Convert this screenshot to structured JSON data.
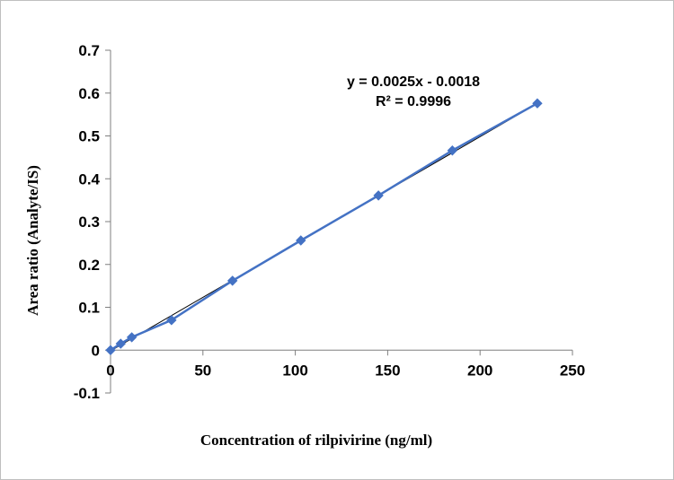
{
  "chart_data": {
    "type": "scatter",
    "xlabel": "Concentration of rilpivirine  (ng/ml)",
    "ylabel": "Area ratio (Analyte/IS)",
    "xlim": [
      0,
      250
    ],
    "ylim": [
      -0.1,
      0.7
    ],
    "x_ticks": [
      "0",
      "50",
      "100",
      "150",
      "200",
      "250"
    ],
    "x_tick_values": [
      0,
      50,
      100,
      150,
      200,
      250
    ],
    "y_ticks": [
      "-0.1",
      "0",
      "0.1",
      "0.2",
      "0.3",
      "0.4",
      "0.5",
      "0.6",
      "0.7"
    ],
    "y_tick_values": [
      -0.1,
      0,
      0.1,
      0.2,
      0.3,
      0.4,
      0.5,
      0.6,
      0.7
    ],
    "grid": false,
    "legend": false,
    "series": [
      {
        "x": [
          0,
          5.5,
          11.5,
          33,
          66,
          103,
          145,
          185,
          231
        ],
        "y": [
          0.0,
          0.015,
          0.03,
          0.07,
          0.162,
          0.256,
          0.361,
          0.466,
          0.576
        ],
        "color": "#4472c4",
        "marker": "diamond"
      }
    ],
    "trendline": {
      "slope": 0.0025,
      "intercept": -0.0018,
      "x_range": [
        0,
        231
      ],
      "color": "#000000",
      "equation_label": "y = 0.0025x - 0.0018",
      "r2_label": "R² = 0.9996"
    }
  }
}
